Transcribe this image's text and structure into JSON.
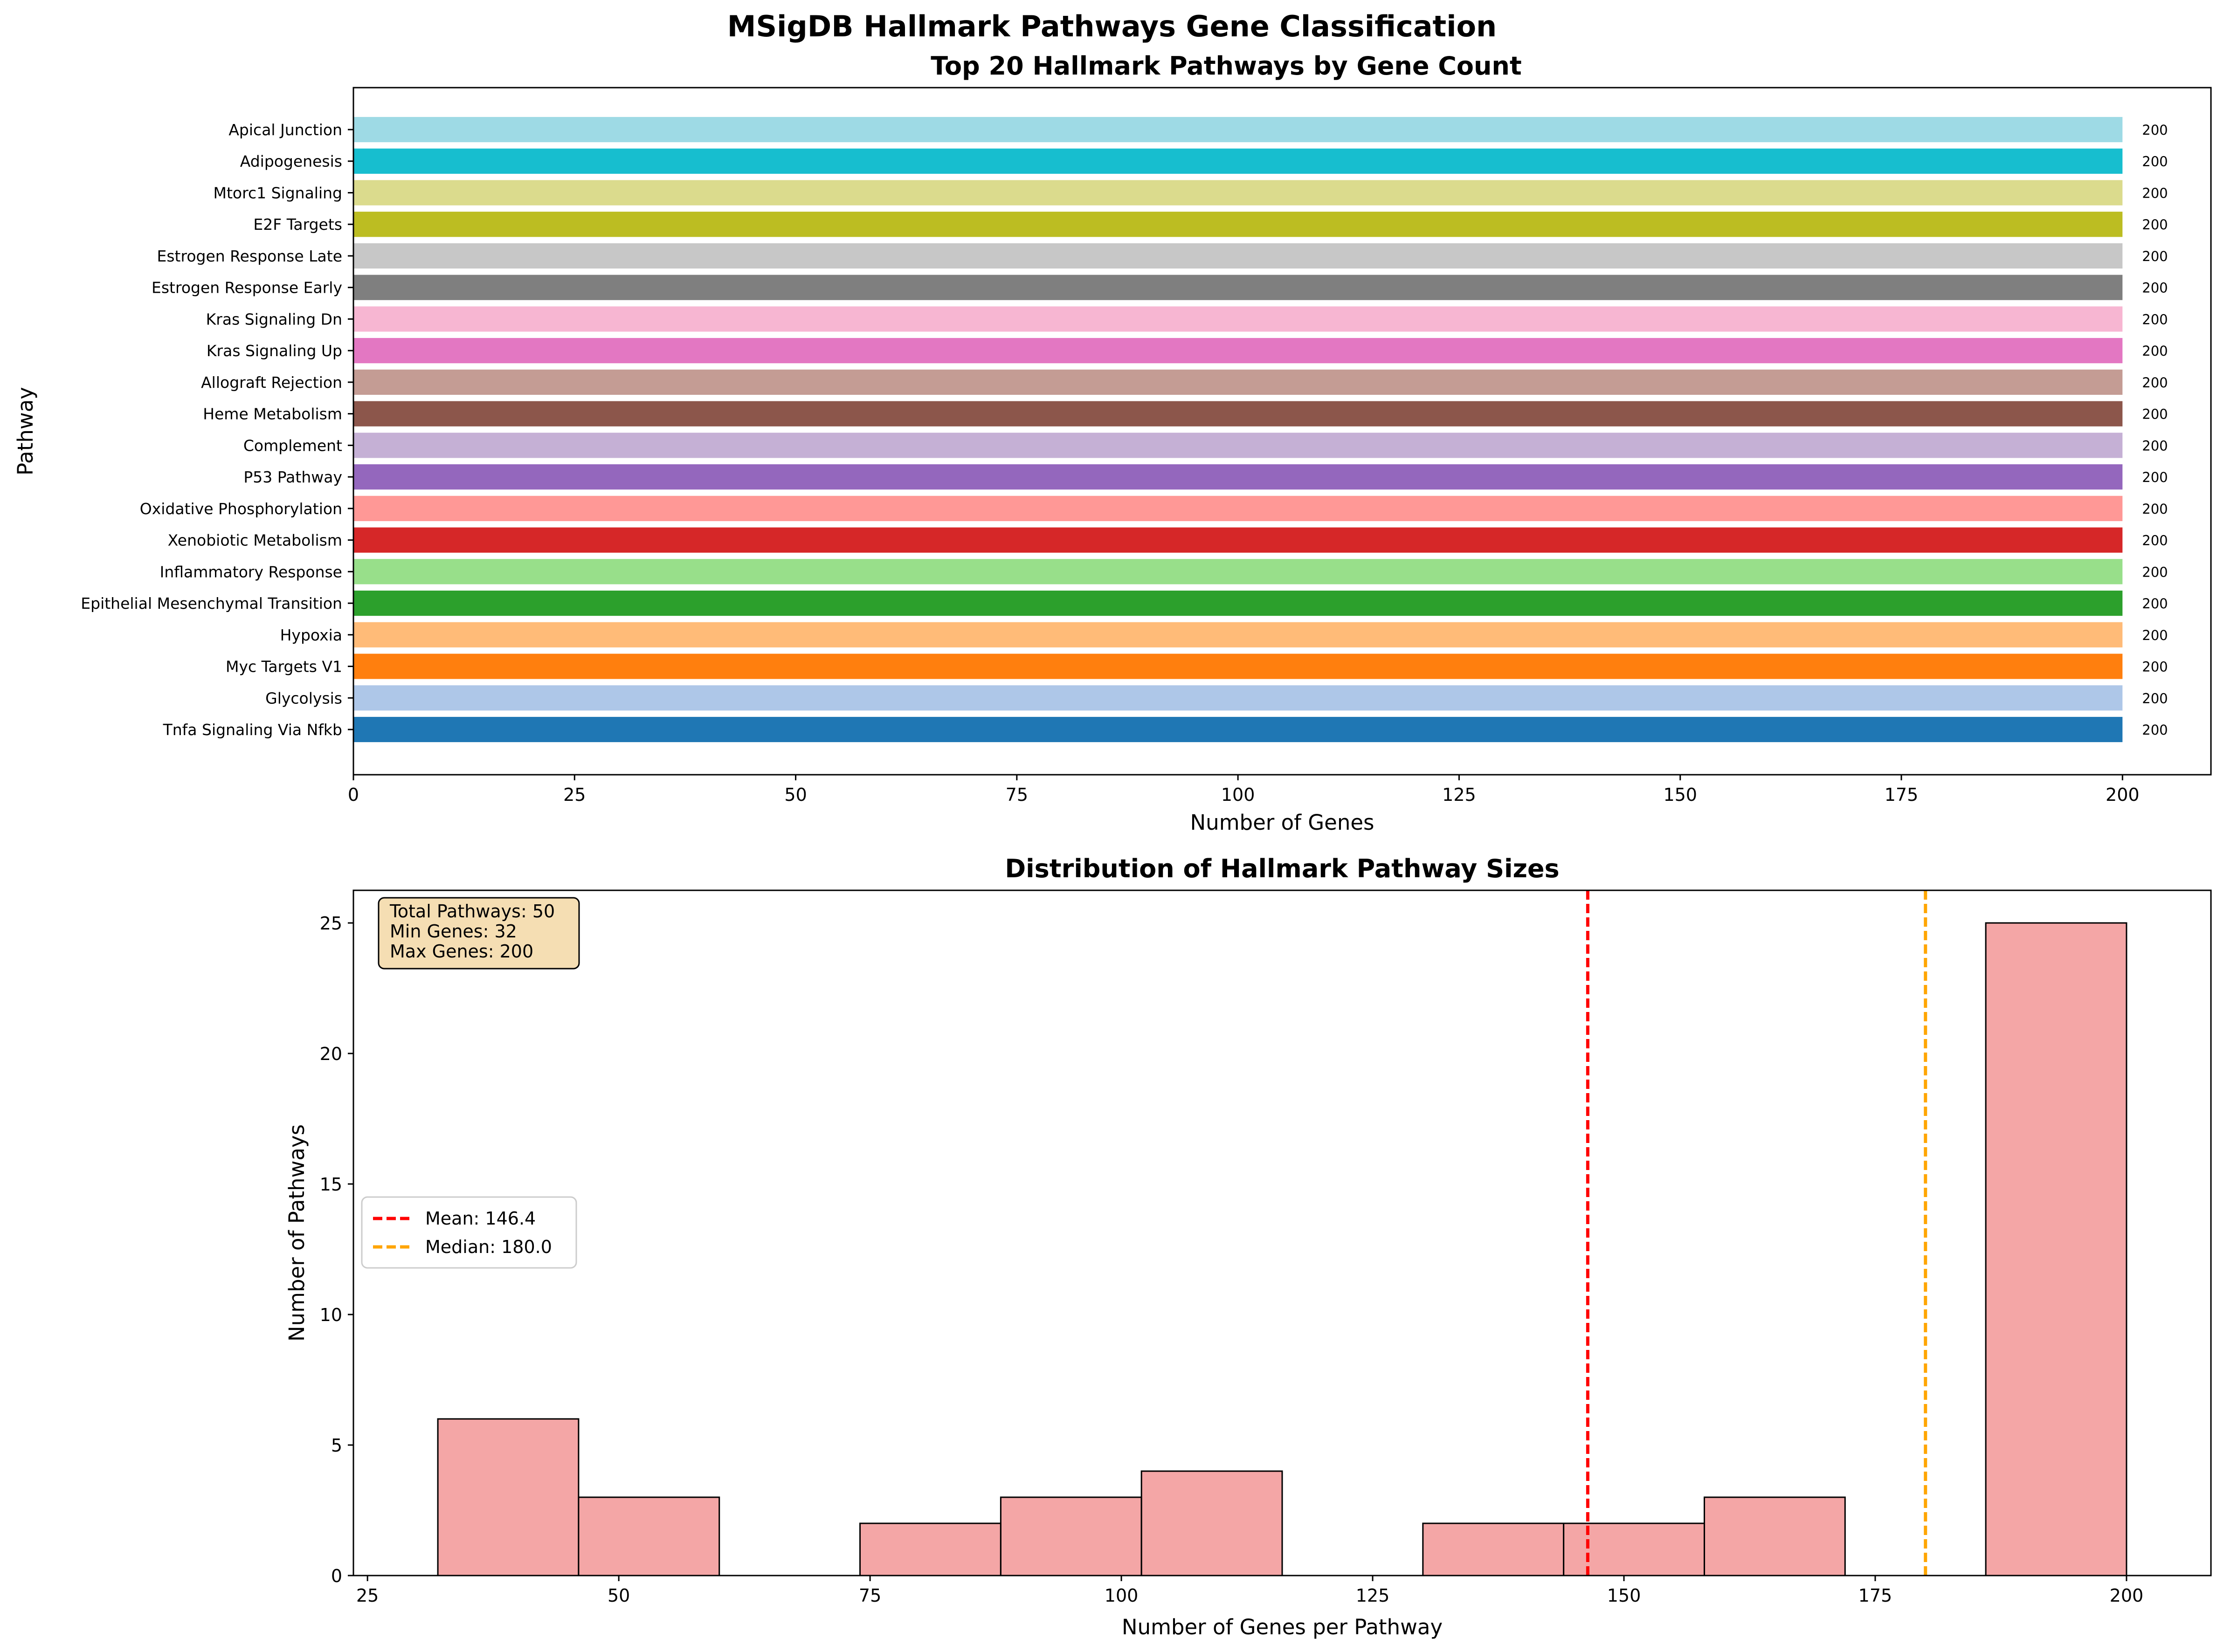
{
  "figure_title": "MSigDB Hallmark Pathways Gene Classification",
  "chart_data": [
    {
      "type": "bar",
      "orientation": "horizontal",
      "title": "Top 20 Hallmark Pathways by Gene Count",
      "xlabel": "Number of Genes",
      "ylabel": "Pathway",
      "xlim": [
        0,
        210
      ],
      "xticks": [
        0,
        25,
        50,
        75,
        100,
        125,
        150,
        175,
        200
      ],
      "categories": [
        "Tnfa Signaling Via Nfkb",
        "Glycolysis",
        "Myc Targets V1",
        "Hypoxia",
        "Epithelial Mesenchymal Transition",
        "Inflammatory Response",
        "Xenobiotic Metabolism",
        "Oxidative Phosphorylation",
        "P53 Pathway",
        "Complement",
        "Heme Metabolism",
        "Allograft Rejection",
        "Kras Signaling Up",
        "Kras Signaling Dn",
        "Estrogen Response Early",
        "Estrogen Response Late",
        "E2F Targets",
        "Mtorc1 Signaling",
        "Adipogenesis",
        "Apical Junction"
      ],
      "values": [
        200,
        200,
        200,
        200,
        200,
        200,
        200,
        200,
        200,
        200,
        200,
        200,
        200,
        200,
        200,
        200,
        200,
        200,
        200,
        200
      ],
      "value_labels": [
        "200",
        "200",
        "200",
        "200",
        "200",
        "200",
        "200",
        "200",
        "200",
        "200",
        "200",
        "200",
        "200",
        "200",
        "200",
        "200",
        "200",
        "200",
        "200",
        "200"
      ],
      "colors": [
        "#1f77b4",
        "#aec7e8",
        "#ff7f0e",
        "#ffbb78",
        "#2ca02c",
        "#98df8a",
        "#d62728",
        "#ff9896",
        "#9467bd",
        "#c5b0d5",
        "#8c564b",
        "#c49c94",
        "#e377c2",
        "#f7b6d2",
        "#7f7f7f",
        "#c7c7c7",
        "#bcbd22",
        "#dbdb8d",
        "#17becf",
        "#9edae5"
      ]
    },
    {
      "type": "histogram",
      "title": "Distribution of Hallmark Pathway Sizes",
      "xlabel": "Number of Genes per Pathway",
      "ylabel": "Number of Pathways",
      "xlim": [
        23.6,
        208.4
      ],
      "ylim": [
        0,
        26.25
      ],
      "xticks": [
        25,
        50,
        75,
        100,
        125,
        150,
        175,
        200
      ],
      "yticks": [
        0,
        5,
        10,
        15,
        20,
        25
      ],
      "bin_edges": [
        32,
        46,
        60,
        74,
        88,
        102,
        116,
        130,
        144,
        158,
        172,
        186,
        200
      ],
      "counts": [
        6,
        3,
        0,
        2,
        3,
        4,
        0,
        2,
        2,
        3,
        0,
        25
      ],
      "bar_color": "#f08080",
      "mean_line": {
        "value": 146.4,
        "color": "#ff0000",
        "label": "Mean: 146.4"
      },
      "median_line": {
        "value": 180.0,
        "color": "#ffa500",
        "label": "Median: 180.0"
      },
      "legend_position": "center-left",
      "stats_box": {
        "line1": "Total Pathways: 50",
        "line2": "Min Genes: 32",
        "line3": "Max Genes: 200"
      }
    }
  ]
}
